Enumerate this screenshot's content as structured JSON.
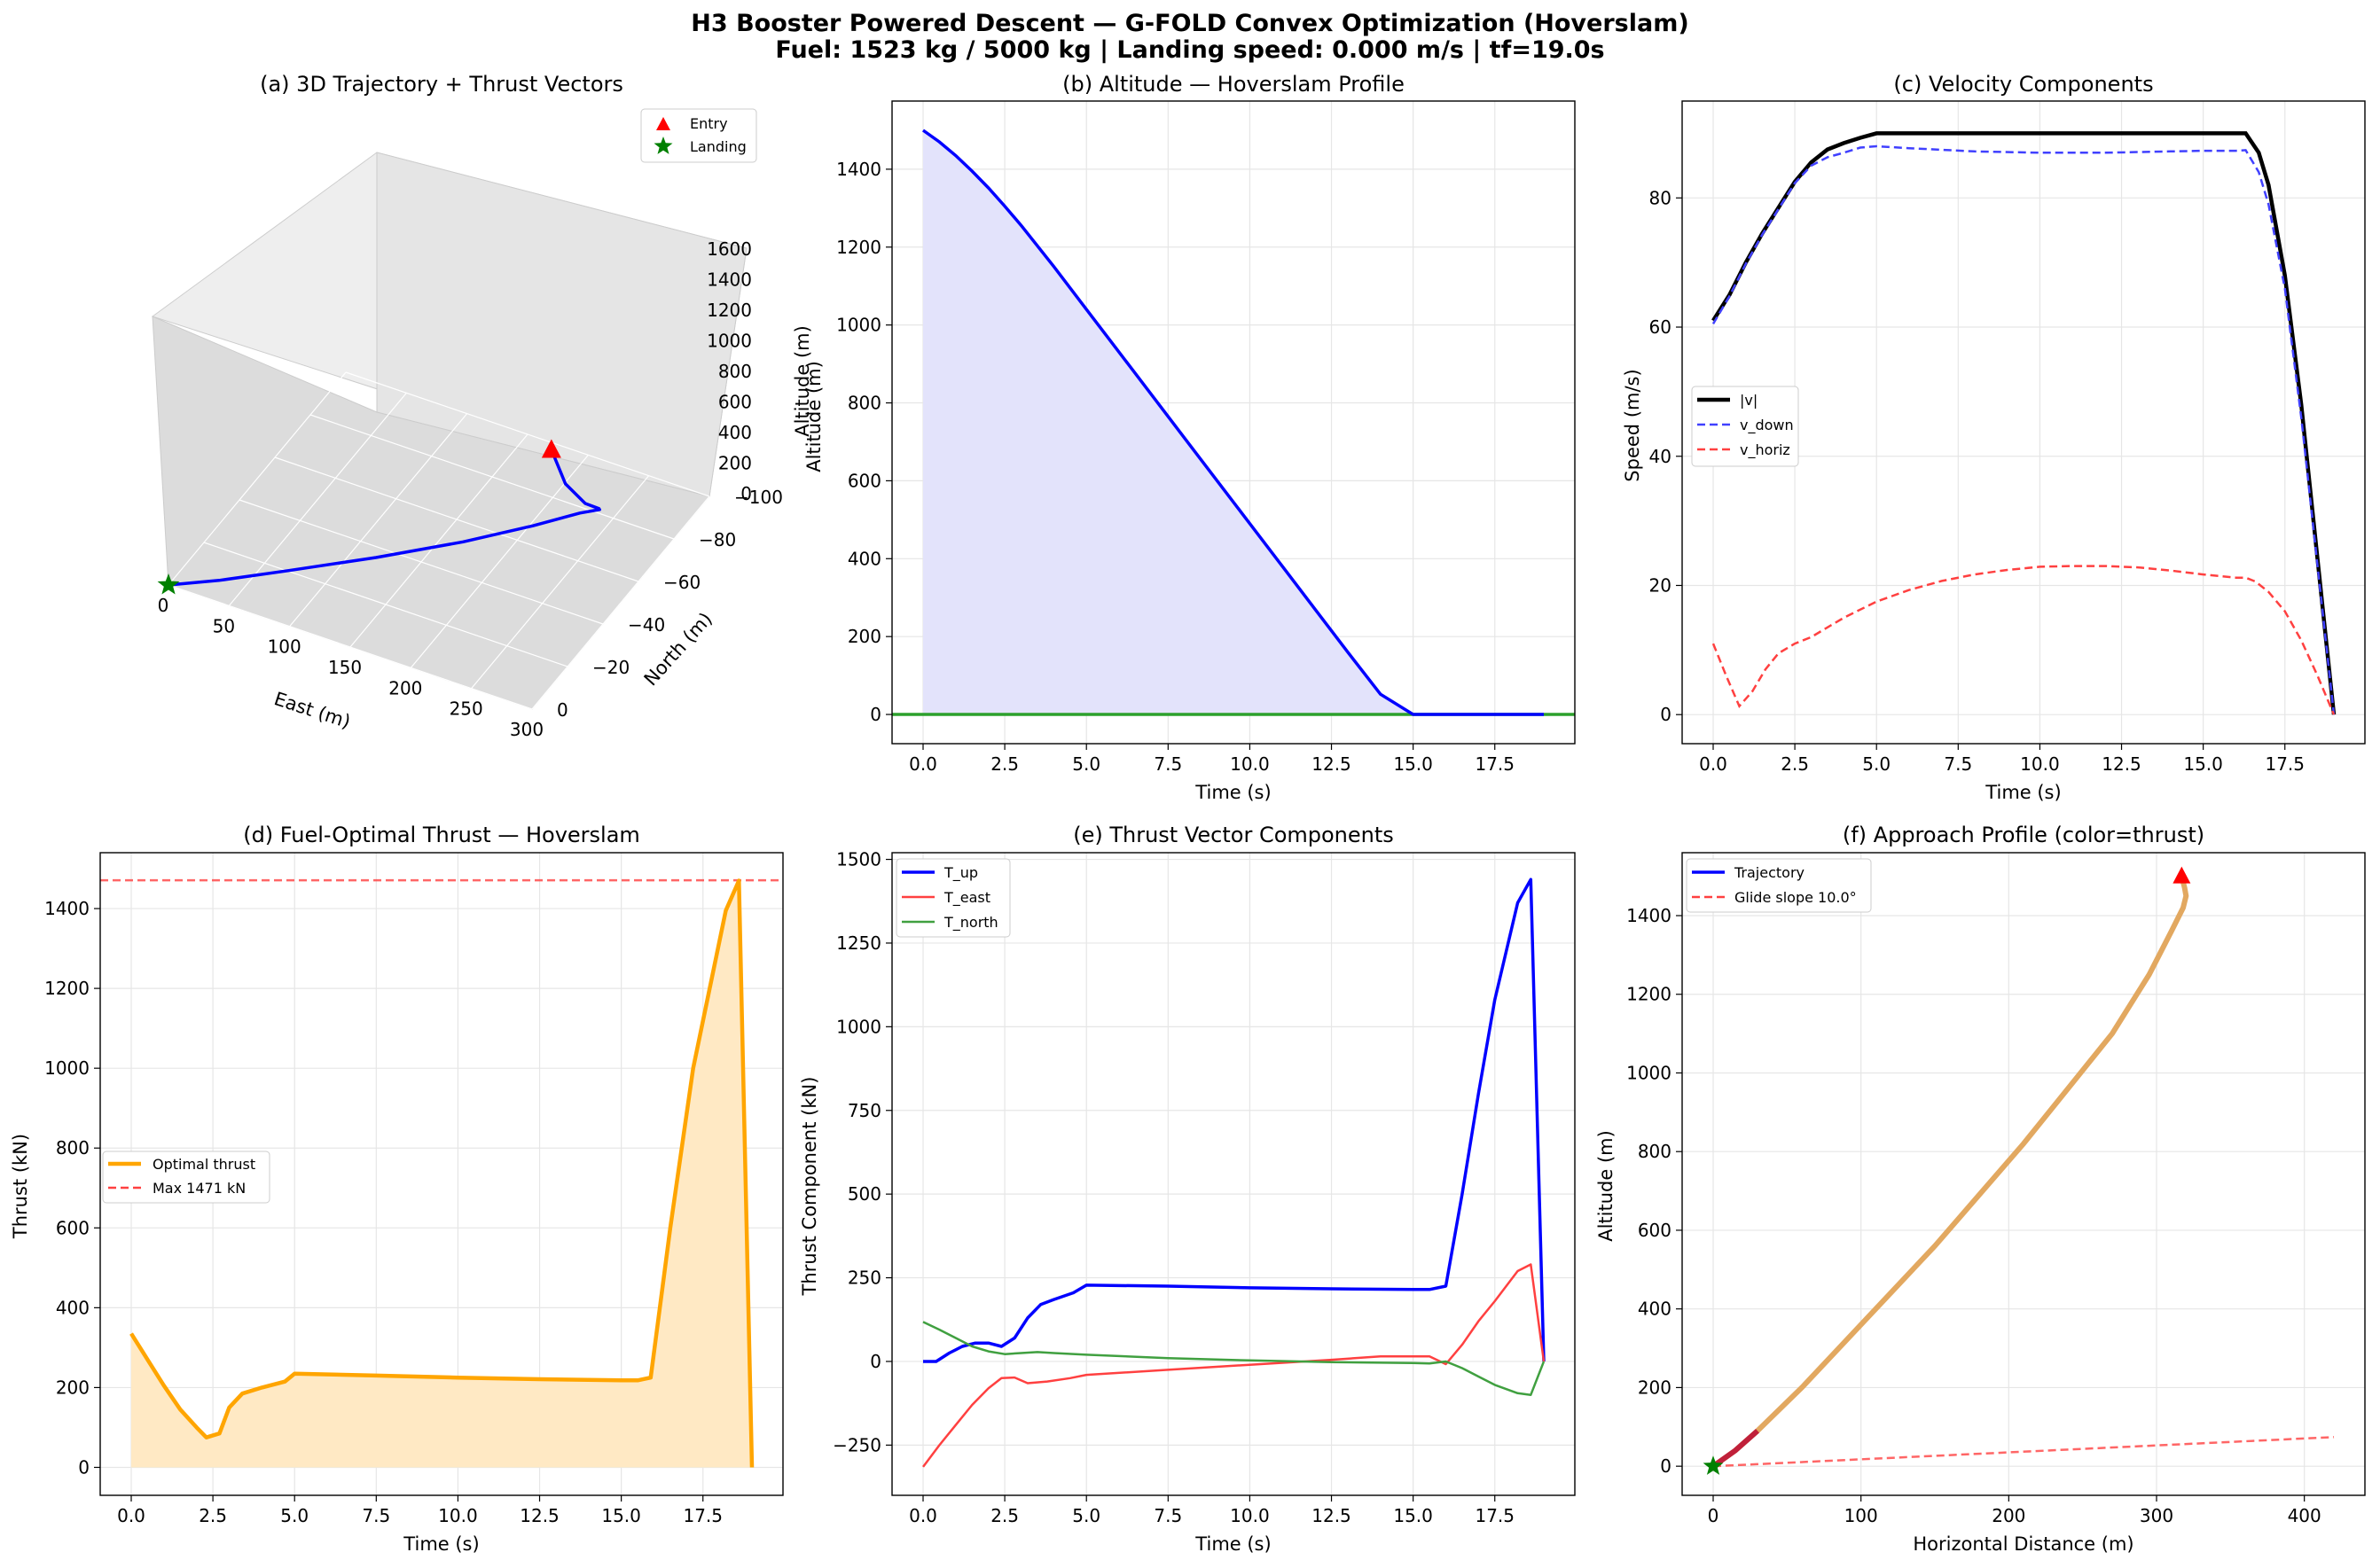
{
  "suptitle": {
    "line1": "H3 Booster Powered Descent — G-FOLD Convex Optimization (Hoverslam)",
    "line2": "Fuel: 1523 kg / 5000 kg  |  Landing speed: 0.000 m/s  |  tf=19.0s"
  },
  "colors": {
    "trajectory": "#0000ff",
    "entry": "#ff0000",
    "landing": "#008000",
    "thrust": "#ffa500",
    "v_mag": "#000000",
    "v_down": "#4040ff",
    "v_horiz": "#ff4040",
    "t_north": "#40a040",
    "ground": "#2ca02c",
    "altitude_fill": "#e3e3fb",
    "thrust_fill": "#ffe9c4",
    "grid": "#e6e6e6"
  },
  "chart_data": [
    {
      "id": "a",
      "type": "scatter",
      "title": "(a) 3D Trajectory + Thrust Vectors",
      "xlabel": "East (m)",
      "ylabel": "North (m)",
      "zlabel": "Altitude (m)",
      "x_ticks": [
        "0",
        "50",
        "100",
        "150",
        "200",
        "250",
        "300"
      ],
      "y_ticks": [
        "0",
        "−20",
        "−40",
        "−60",
        "−80",
        "−100"
      ],
      "z_ticks": [
        "0",
        "200",
        "400",
        "600",
        "800",
        "1000",
        "1200",
        "1400",
        "1600"
      ],
      "legend": [
        {
          "label": "Entry",
          "marker": "triangle",
          "color": "#ff0000"
        },
        {
          "label": "Landing",
          "marker": "star",
          "color": "#008000"
        }
      ],
      "legend_loc": "upper right",
      "series": [
        {
          "name": "trajectory",
          "east": [
            0,
            30,
            70,
            120,
            170,
            210,
            240,
            265,
            285,
            300,
            310,
            316
          ],
          "north": [
            0,
            -8,
            -20,
            -35,
            -50,
            -62,
            -68,
            -62,
            -48,
            -30,
            -12,
            0
          ],
          "alt": [
            0,
            0,
            5,
            15,
            40,
            80,
            150,
            300,
            520,
            800,
            1150,
            1500
          ]
        }
      ],
      "grid": true
    },
    {
      "id": "b",
      "type": "area",
      "title": "(b) Altitude — Hoverslam Profile",
      "xlabel": "Time (s)",
      "ylabel": "Altitude (m)",
      "xlim": [
        -0.95,
        19.95
      ],
      "ylim": [
        -75,
        1575
      ],
      "x_ticks": [
        "0.0",
        "2.5",
        "5.0",
        "7.5",
        "10.0",
        "12.5",
        "15.0",
        "17.5"
      ],
      "x_tick_values": [
        0,
        2.5,
        5,
        7.5,
        10,
        12.5,
        15,
        17.5
      ],
      "y_ticks": [
        "0",
        "200",
        "400",
        "600",
        "800",
        "1000",
        "1200",
        "1400"
      ],
      "y_tick_values": [
        0,
        200,
        400,
        600,
        800,
        1000,
        1200,
        1400
      ],
      "x": [
        0,
        0.5,
        1,
        1.5,
        2,
        2.5,
        3,
        4,
        5,
        6,
        7,
        8,
        9,
        10,
        11,
        12,
        13,
        14,
        15,
        16,
        16.5,
        17,
        17.5,
        18,
        18.5,
        19
      ],
      "y": [
        1500,
        1470,
        1435,
        1395,
        1352,
        1305,
        1256,
        1150,
        1040,
        930,
        820,
        710,
        600,
        490,
        380,
        270,
        160,
        52,
        0,
        0,
        0,
        0,
        0,
        0,
        0,
        0
      ],
      "ground_line": 0,
      "grid": true
    },
    {
      "id": "c",
      "type": "line",
      "title": "(c) Velocity Components",
      "xlabel": "Time (s)",
      "ylabel": "Speed (m/s)",
      "xlim": [
        -0.95,
        19.95
      ],
      "ylim": [
        -4.5,
        95
      ],
      "x_ticks": [
        "0.0",
        "2.5",
        "5.0",
        "7.5",
        "10.0",
        "12.5",
        "15.0",
        "17.5"
      ],
      "x_tick_values": [
        0,
        2.5,
        5,
        7.5,
        10,
        12.5,
        15,
        17.5
      ],
      "y_ticks": [
        "0",
        "20",
        "40",
        "60",
        "80"
      ],
      "y_tick_values": [
        0,
        20,
        40,
        60,
        80
      ],
      "legend_loc": "center left",
      "series": [
        {
          "name": "|v|",
          "style": "solid",
          "color": "#000000",
          "width": 4.5,
          "x": [
            0,
            0.5,
            1,
            1.5,
            2,
            2.5,
            3,
            3.5,
            4,
            4.5,
            5,
            6,
            8,
            10,
            12,
            14,
            16,
            16.3,
            16.7,
            17,
            17.5,
            18,
            18.5,
            19
          ],
          "y": [
            61,
            65,
            70,
            74.5,
            78.5,
            82.5,
            85.5,
            87.5,
            88.5,
            89.3,
            90,
            90,
            90,
            90,
            90,
            90,
            90,
            90,
            87,
            82,
            68,
            48,
            24,
            0
          ]
        },
        {
          "name": "v_down",
          "style": "dashed",
          "color": "#4040ff",
          "width": 2.5,
          "x": [
            0,
            0.5,
            1,
            1.5,
            2,
            2.5,
            3,
            3.5,
            4,
            4.5,
            5,
            6,
            8,
            10,
            12,
            14,
            15,
            16,
            16.3,
            16.7,
            17,
            17.5,
            18,
            18.5,
            19
          ],
          "y": [
            60.5,
            64.8,
            69.8,
            74.3,
            78.3,
            82.3,
            85,
            86.3,
            87,
            87.8,
            88,
            87.7,
            87.2,
            87,
            87,
            87.2,
            87.3,
            87.3,
            87.4,
            84,
            79,
            66,
            46,
            23,
            0
          ]
        },
        {
          "name": "v_horiz",
          "style": "dashed",
          "color": "#ff4040",
          "width": 2.5,
          "x": [
            0,
            0.4,
            0.8,
            1.2,
            1.6,
            2,
            2.5,
            3,
            3.5,
            4,
            5,
            6,
            7,
            8,
            9,
            10,
            11,
            12,
            13,
            14,
            15,
            16,
            16.3,
            16.6,
            17,
            17.5,
            18,
            18.5,
            19
          ],
          "y": [
            11,
            6,
            1.3,
            3.6,
            7,
            9.5,
            11,
            12,
            13.5,
            15,
            17.5,
            19.3,
            20.7,
            21.7,
            22.4,
            22.9,
            23,
            23,
            22.8,
            22.3,
            21.7,
            21.2,
            21.2,
            20.6,
            19,
            16,
            11.5,
            6,
            0
          ]
        }
      ],
      "grid": true
    },
    {
      "id": "d",
      "type": "area",
      "title": "(d) Fuel-Optimal Thrust — Hoverslam",
      "xlabel": "Time (s)",
      "ylabel": "Thrust (kN)",
      "xlim": [
        -0.95,
        19.95
      ],
      "ylim": [
        -70,
        1540
      ],
      "x_ticks": [
        "0.0",
        "2.5",
        "5.0",
        "7.5",
        "10.0",
        "12.5",
        "15.0",
        "17.5"
      ],
      "x_tick_values": [
        0,
        2.5,
        5,
        7.5,
        10,
        12.5,
        15,
        17.5
      ],
      "y_ticks": [
        "0",
        "200",
        "400",
        "600",
        "800",
        "1000",
        "1200",
        "1400"
      ],
      "y_tick_values": [
        0,
        200,
        400,
        600,
        800,
        1000,
        1200,
        1400
      ],
      "legend_loc": "center left",
      "series": [
        {
          "name": "Optimal thrust",
          "color": "#ffa500",
          "x": [
            0,
            0.5,
            1,
            1.5,
            2,
            2.3,
            2.7,
            3,
            3.4,
            4,
            4.7,
            5,
            7.5,
            10,
            12.5,
            15,
            15.5,
            15.9,
            16.5,
            17.2,
            18.2,
            18.6,
            19
          ],
          "y": [
            335,
            270,
            205,
            145,
            100,
            75,
            85,
            150,
            185,
            200,
            215,
            235,
            230,
            225,
            221,
            218,
            218,
            225,
            600,
            1000,
            1395,
            1470,
            0
          ]
        }
      ],
      "reference_line": {
        "label": "Max 1471 kN",
        "value": 1471,
        "style": "dashed",
        "color": "#ff4040"
      },
      "grid": true
    },
    {
      "id": "e",
      "type": "line",
      "title": "(e) Thrust Vector Components",
      "xlabel": "Time (s)",
      "ylabel": "Thrust Component (kN)",
      "xlim": [
        -0.95,
        19.95
      ],
      "ylim": [
        -400,
        1520
      ],
      "x_ticks": [
        "0.0",
        "2.5",
        "5.0",
        "7.5",
        "10.0",
        "12.5",
        "15.0",
        "17.5"
      ],
      "x_tick_values": [
        0,
        2.5,
        5,
        7.5,
        10,
        12.5,
        15,
        17.5
      ],
      "y_ticks": [
        "−250",
        "0",
        "250",
        "500",
        "750",
        "1000",
        "1250",
        "1500"
      ],
      "y_tick_values": [
        -250,
        0,
        250,
        500,
        750,
        1000,
        1250,
        1500
      ],
      "legend_loc": "upper left",
      "series": [
        {
          "name": "T_up",
          "color": "#0000ff",
          "width": 3.5,
          "x": [
            0,
            0.4,
            0.8,
            1.2,
            1.6,
            2,
            2.4,
            2.8,
            3.2,
            3.6,
            4,
            4.6,
            5,
            7.5,
            10,
            12.5,
            15,
            15.5,
            16,
            16.5,
            17,
            17.5,
            18.2,
            18.6,
            19
          ],
          "y": [
            0,
            0,
            25,
            45,
            55,
            55,
            45,
            70,
            130,
            170,
            185,
            205,
            228,
            225,
            220,
            217,
            215,
            215,
            225,
            500,
            800,
            1080,
            1370,
            1440,
            0
          ]
        },
        {
          "name": "T_east",
          "color": "#ff4040",
          "width": 2.5,
          "x": [
            0,
            0.5,
            1,
            1.5,
            2,
            2.4,
            2.8,
            3.2,
            3.8,
            4.5,
            5,
            7.5,
            10,
            12.5,
            14,
            15,
            15.5,
            16,
            16.5,
            17,
            17.5,
            18.2,
            18.6,
            19
          ],
          "y": [
            -315,
            -250,
            -190,
            -130,
            -80,
            -50,
            -48,
            -65,
            -60,
            -50,
            -40,
            -25,
            -10,
            5,
            15,
            15,
            15,
            -8,
            50,
            120,
            180,
            270,
            290,
            0
          ]
        },
        {
          "name": "T_north",
          "color": "#40a040",
          "width": 2.5,
          "x": [
            0,
            0.5,
            1,
            1.5,
            2,
            2.5,
            3,
            3.5,
            4,
            5,
            7.5,
            10,
            12.5,
            15,
            15.5,
            16,
            16.5,
            17,
            17.5,
            18.2,
            18.6,
            19
          ],
          "y": [
            118,
            95,
            70,
            45,
            30,
            22,
            25,
            28,
            25,
            20,
            10,
            3,
            -2,
            -5,
            -6,
            0,
            -20,
            -45,
            -70,
            -95,
            -100,
            0
          ]
        }
      ],
      "grid": true
    },
    {
      "id": "f",
      "type": "line",
      "title": "(f) Approach Profile (color=thrust)",
      "xlabel": "Horizontal Distance (m)",
      "ylabel": "Altitude (m)",
      "xlim": [
        -21,
        441
      ],
      "ylim": [
        -74,
        1560
      ],
      "x_ticks": [
        "0",
        "100",
        "200",
        "300",
        "400"
      ],
      "x_tick_values": [
        0,
        100,
        200,
        300,
        400
      ],
      "y_ticks": [
        "0",
        "200",
        "400",
        "600",
        "800",
        "1000",
        "1200",
        "1400"
      ],
      "y_tick_values": [
        0,
        200,
        400,
        600,
        800,
        1000,
        1200,
        1400
      ],
      "legend_loc": "upper left",
      "series": [
        {
          "name": "Trajectory",
          "color": "#0000ff",
          "x": [
            0,
            15,
            30,
            60,
            90,
            120,
            150,
            180,
            210,
            240,
            270,
            295,
            310,
            318,
            320,
            319,
            317
          ],
          "y": [
            0,
            40,
            90,
            200,
            320,
            440,
            560,
            690,
            820,
            960,
            1100,
            1250,
            1360,
            1420,
            1450,
            1470,
            1500
          ]
        },
        {
          "name": "Glide slope 10.0°",
          "style": "dashed",
          "color": "#ff4040",
          "x": [
            0,
            420
          ],
          "y": [
            0,
            74
          ]
        }
      ],
      "markers": [
        {
          "label": "Entry",
          "marker": "triangle",
          "x": 317,
          "y": 1500,
          "color": "#ff0000"
        },
        {
          "label": "Landing",
          "marker": "star",
          "x": 0,
          "y": 0,
          "color": "#008000"
        }
      ],
      "grid": true
    }
  ]
}
